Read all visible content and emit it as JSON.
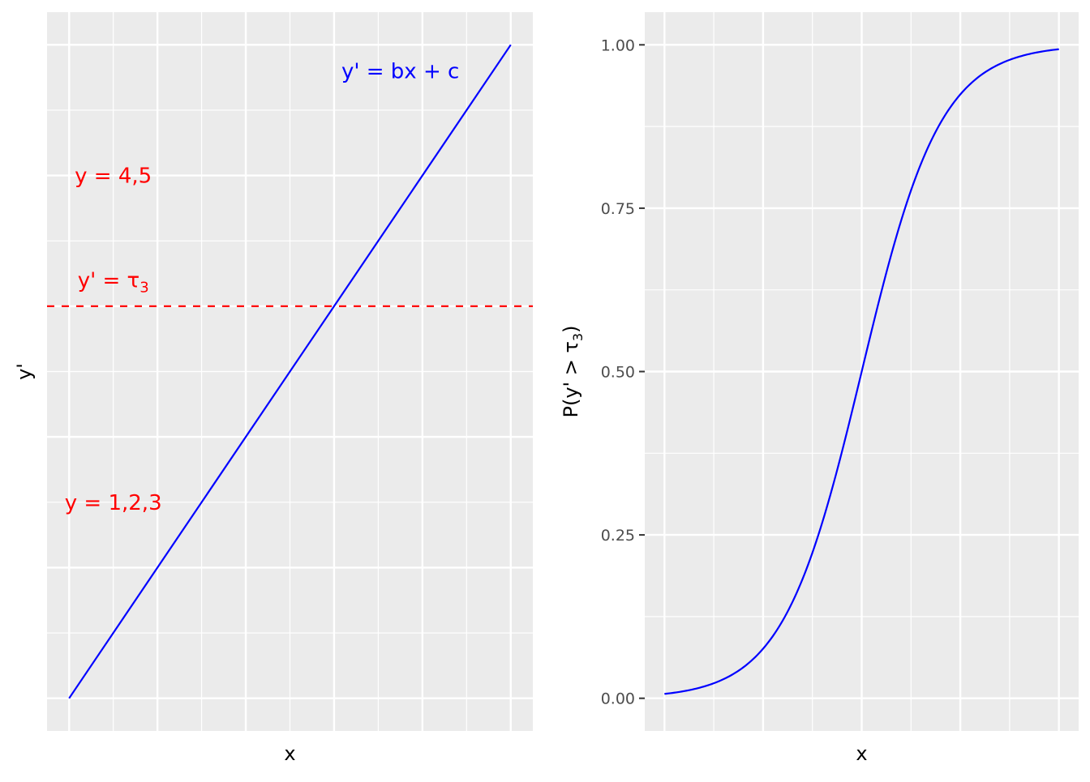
{
  "chart_data": [
    {
      "type": "line",
      "xlabel": "x",
      "ylabel": "y'",
      "x_tick_labels": "none",
      "y_tick_labels": "none",
      "grid": true,
      "background": "#ebebeb",
      "series": [
        {
          "color": "#0000ff",
          "style": "solid",
          "points": [
            [
              0,
              0
            ],
            [
              10,
              10
            ]
          ]
        }
      ],
      "hlines": [
        {
          "y": 6,
          "color": "#ff0000",
          "style": "dashed"
        }
      ],
      "annotations": {
        "line_label": {
          "text": "y' = bx + c",
          "x": 7.5,
          "y": 9.6,
          "color": "#0000ff"
        },
        "upper_region": {
          "text": "y = 4,5",
          "x": 1,
          "y": 8,
          "color": "#ff0000"
        },
        "threshold": {
          "prefix": "y' = τ",
          "sub": "3",
          "x": 1,
          "y": 6.4,
          "color": "#ff0000"
        },
        "lower_region": {
          "text": "y = 1,2,3",
          "x": 1,
          "y": 3,
          "color": "#ff0000"
        }
      }
    },
    {
      "type": "line",
      "xlabel": "x",
      "ylabel": {
        "prefix": "P(y' > τ",
        "sub": "3",
        "suffix": ")"
      },
      "ylim": [
        0,
        1
      ],
      "yticks": [
        0,
        0.25,
        0.5,
        0.75,
        1
      ],
      "ytick_labels": [
        "0.00",
        "0.25",
        "0.50",
        "0.75",
        "1.00"
      ],
      "x_tick_labels": "none",
      "grid": true,
      "background": "#ebebeb",
      "series": [
        {
          "color": "#0000ff",
          "style": "solid",
          "curve": "logistic",
          "x_range": [
            -5,
            5
          ]
        }
      ]
    }
  ]
}
